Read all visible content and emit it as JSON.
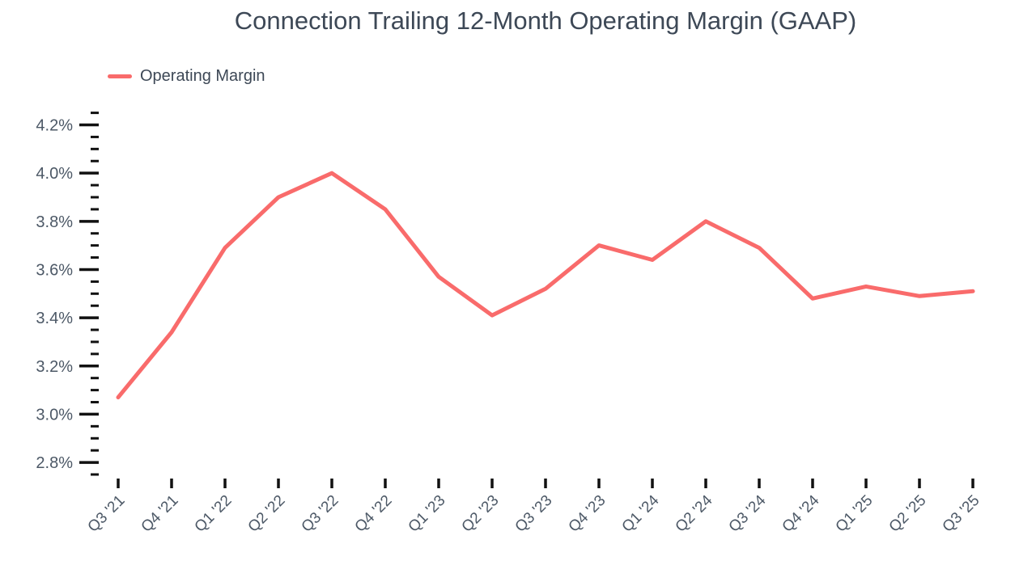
{
  "title": "Connection Trailing 12-Month Operating Margin (GAAP)",
  "legend": {
    "label": "Operating Margin"
  },
  "colors": {
    "line": "#F96B6B",
    "title_text": "#3D4856",
    "axis_label_text": "#4C5866",
    "tick": "#111111",
    "background": "#FFFFFF"
  },
  "chart_data": {
    "type": "line",
    "title": "Connection Trailing 12-Month Operating Margin (GAAP)",
    "categories": [
      "Q3 '21",
      "Q4 '21",
      "Q1 '22",
      "Q2 '22",
      "Q3 '22",
      "Q4 '22",
      "Q1 '23",
      "Q2 '23",
      "Q3 '23",
      "Q4 '23",
      "Q1 '24",
      "Q2 '24",
      "Q3 '24",
      "Q4 '24",
      "Q1 '25",
      "Q2 '25",
      "Q3 '25"
    ],
    "series": [
      {
        "name": "Operating Margin",
        "unit": "%",
        "values": [
          3.07,
          3.34,
          3.69,
          3.9,
          4.0,
          3.85,
          3.57,
          3.41,
          3.52,
          3.7,
          3.64,
          3.8,
          3.69,
          3.48,
          3.53,
          3.49,
          3.51
        ]
      }
    ],
    "xlabel": "",
    "ylabel": "",
    "ylim": [
      2.75,
      4.25
    ],
    "y_major_ticks": [
      4.2,
      4.0,
      3.8,
      3.6,
      3.4,
      3.2,
      3.0,
      2.8
    ],
    "y_tick_labels": [
      "4.2%",
      "4.0%",
      "3.8%",
      "3.6%",
      "3.4%",
      "3.2%",
      "3.0%",
      "2.8%"
    ],
    "y_minor_step": 0.05,
    "grid": false,
    "legend_position": "top-left",
    "x_tick_rotation": -45
  }
}
